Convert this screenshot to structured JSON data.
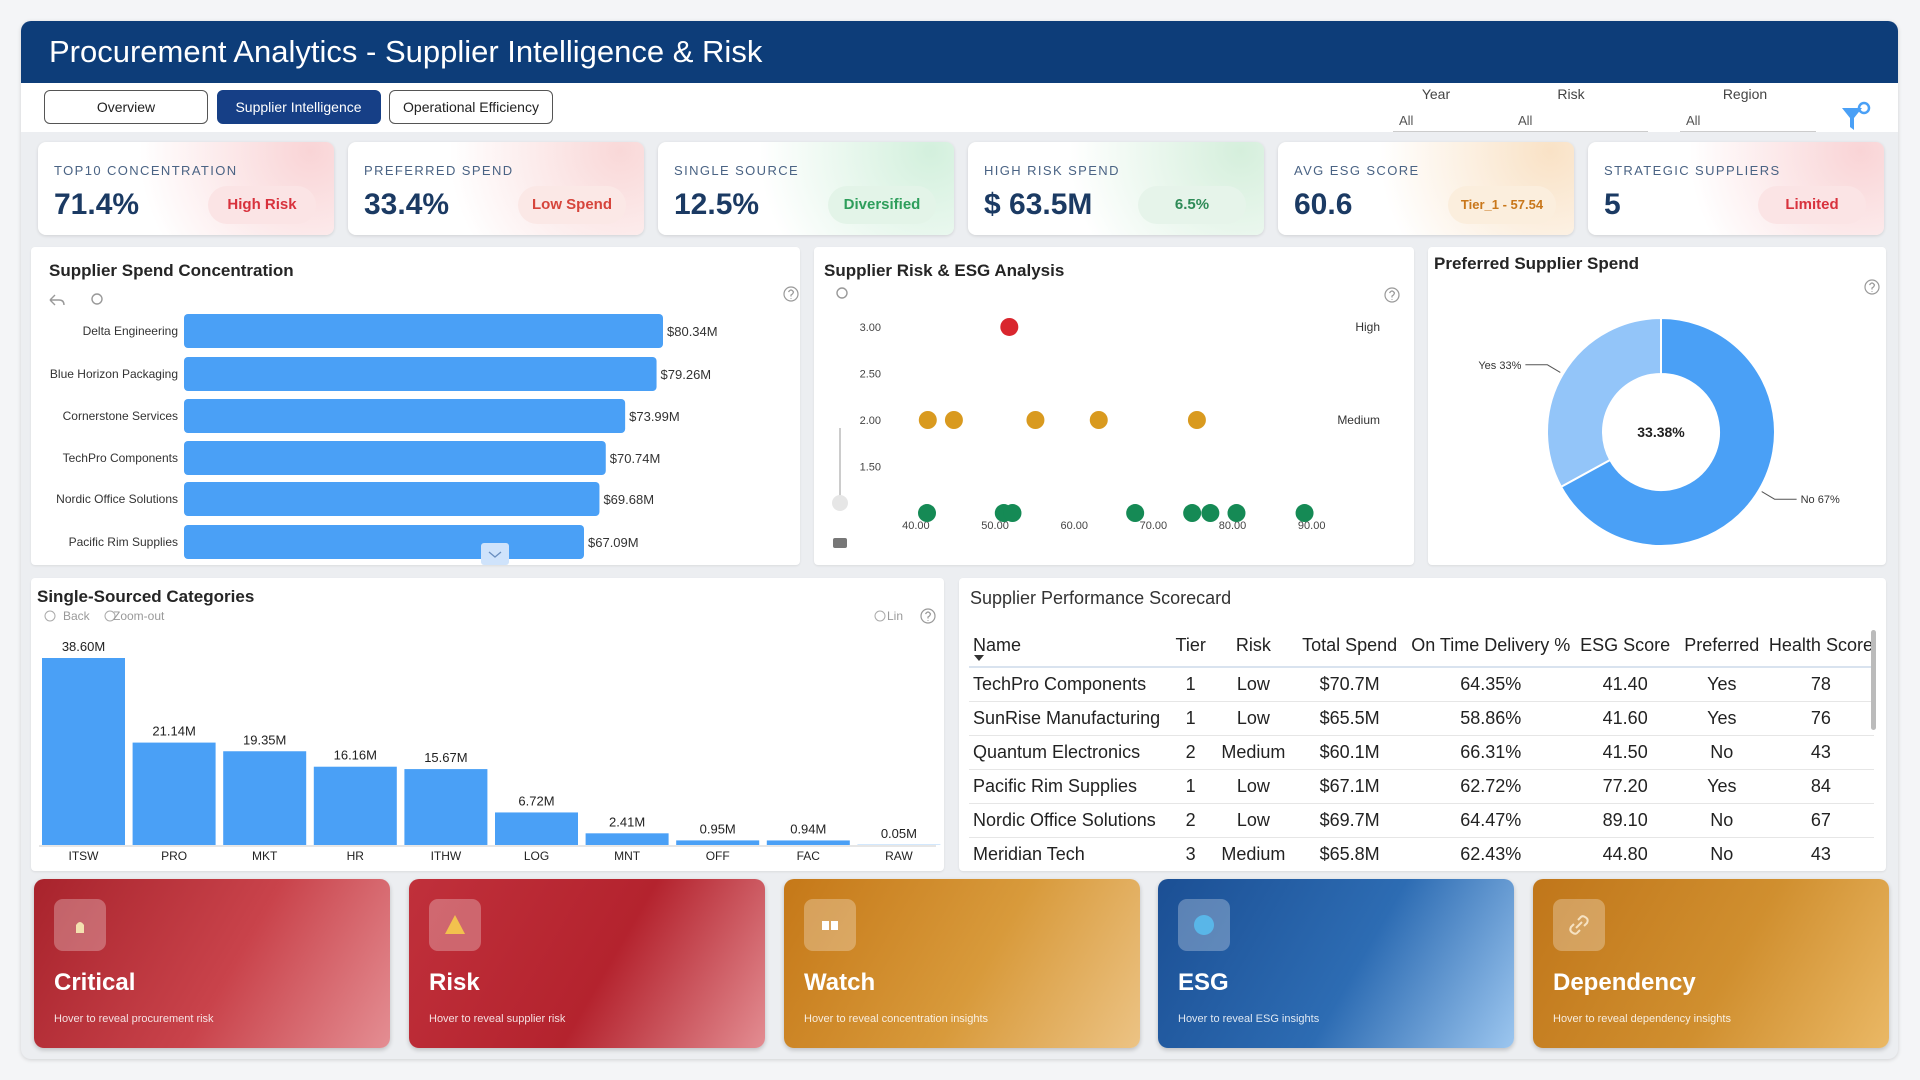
{
  "header": {
    "title": "Procurement Analytics - Supplier Intelligence & Risk"
  },
  "tabs": {
    "items": [
      "Overview",
      "Supplier Intelligence",
      "Operational Efficiency"
    ],
    "active": 1
  },
  "filters": [
    {
      "label": "Year",
      "value": "All"
    },
    {
      "label": "Risk",
      "value": "All"
    },
    {
      "label": "Region",
      "value": "All"
    }
  ],
  "kpis": [
    {
      "label": "TOP10 CONCENTRATION",
      "value": "71.4%",
      "badge": "High Risk"
    },
    {
      "label": "PREFERRED SPEND",
      "value": "33.4%",
      "badge": "Low Spend"
    },
    {
      "label": "SINGLE SOURCE",
      "value": "12.5%",
      "badge": "Diversified"
    },
    {
      "label": "HIGH RISK SPEND",
      "value": "$ 63.5M",
      "badge": "6.5%"
    },
    {
      "label": "AVG ESG SCORE",
      "value": "60.6",
      "badge": "Tier_1 - 57.54"
    },
    {
      "label": "STRATEGIC SUPPLIERS",
      "value": "5",
      "badge": "Limited"
    }
  ],
  "spend_concentration": {
    "type": "bar",
    "orientation": "horizontal",
    "title": "Supplier Spend Concentration",
    "categories": [
      "Delta Engineering",
      "Blue Horizon Packaging",
      "Cornerstone Services",
      "TechPro Components",
      "Nordic Office Solutions",
      "Pacific Rim Supplies"
    ],
    "values": [
      80.34,
      79.26,
      73.99,
      70.74,
      69.68,
      67.09
    ],
    "value_labels": [
      "$80.34M",
      "$79.26M",
      "$73.99M",
      "$70.74M",
      "$69.68M",
      "$67.09M"
    ],
    "color": "#4aa0f6"
  },
  "risk_esg": {
    "type": "scatter",
    "title": "Supplier Risk & ESG Analysis",
    "x": [
      51.8,
      41.5,
      44.8,
      55.1,
      63.1,
      75.5,
      41.4,
      51.1,
      52.2,
      67.7,
      74.9,
      77.2,
      80.5,
      89.1
    ],
    "y": [
      3,
      2,
      2,
      2,
      2,
      2,
      1,
      1,
      1,
      1,
      1,
      1,
      1,
      1
    ],
    "colors": [
      "#d9262e",
      "#d99a1f",
      "#d99a1f",
      "#d99a1f",
      "#d99a1f",
      "#d99a1f",
      "#158a55",
      "#158a55",
      "#158a55",
      "#158a55",
      "#158a55",
      "#158a55",
      "#158a55",
      "#158a55"
    ],
    "xlim": [
      32,
      98
    ],
    "ylim": [
      0.85,
      3.15
    ],
    "xticks": [
      {
        "value": 40,
        "label": "40.00"
      },
      {
        "value": 50,
        "label": "50.00"
      },
      {
        "value": 60,
        "label": "60.00"
      },
      {
        "value": 70,
        "label": "70.00"
      },
      {
        "value": 80,
        "label": "80.00"
      },
      {
        "value": 90,
        "label": "90.00"
      }
    ],
    "yticks": [
      {
        "value": 1.5,
        "label": "1.50"
      },
      {
        "value": 2,
        "label": "2.00"
      },
      {
        "value": 2.5,
        "label": "2.50"
      },
      {
        "value": 3,
        "label": "3.00"
      }
    ],
    "annotations": [
      {
        "y": 3,
        "text": "High"
      },
      {
        "y": 2,
        "text": "Medium"
      }
    ]
  },
  "preferred_spend": {
    "type": "donut",
    "title": "Preferred Supplier Spend",
    "categories": [
      "Yes",
      "No"
    ],
    "values": [
      33,
      67
    ],
    "value_labels": [
      "Yes 33%",
      "No 67%"
    ],
    "colors": [
      "#93c5f9",
      "#4aa0f6"
    ],
    "center_label": "33.38%"
  },
  "single_sourced": {
    "type": "bar",
    "title": "Single-Sourced Categories",
    "toolbar": [
      "Back",
      "Zoom-out",
      "Lin"
    ],
    "categories": [
      "ITSW",
      "PRO",
      "MKT",
      "HR",
      "ITHW",
      "LOG",
      "MNT",
      "OFF",
      "FAC",
      "RAW"
    ],
    "values": [
      38.6,
      21.14,
      19.35,
      16.16,
      15.67,
      6.72,
      2.41,
      0.95,
      0.94,
      0.05
    ],
    "value_labels": [
      "38.60M",
      "21.14M",
      "19.35M",
      "16.16M",
      "15.67M",
      "6.72M",
      "2.41M",
      "0.95M",
      "0.94M",
      "0.05M"
    ],
    "color": "#4aa0f6"
  },
  "scorecard": {
    "title": "Supplier Performance Scorecard",
    "columns": [
      "Name",
      "Tier",
      "Risk",
      "Total Spend",
      "On Time Delivery %",
      "ESG Score",
      "Preferred",
      "Health Score"
    ],
    "rows": [
      [
        "TechPro Components",
        "1",
        "Low",
        "$70.7M",
        "64.35%",
        "41.40",
        "Yes",
        "78"
      ],
      [
        "SunRise Manufacturing",
        "1",
        "Low",
        "$65.5M",
        "58.86%",
        "41.60",
        "Yes",
        "76"
      ],
      [
        "Quantum Electronics",
        "2",
        "Medium",
        "$60.1M",
        "66.31%",
        "41.50",
        "No",
        "43"
      ],
      [
        "Pacific Rim Supplies",
        "1",
        "Low",
        "$67.1M",
        "62.72%",
        "77.20",
        "Yes",
        "84"
      ],
      [
        "Nordic Office Solutions",
        "2",
        "Low",
        "$69.7M",
        "64.47%",
        "89.10",
        "No",
        "67"
      ],
      [
        "Meridian Tech",
        "3",
        "Medium",
        "$65.8M",
        "62.43%",
        "44.80",
        "No",
        "43"
      ]
    ]
  },
  "insight_cards": [
    {
      "title": "Critical",
      "subtitle": "Hover to reveal procurement risk"
    },
    {
      "title": "Risk",
      "subtitle": "Hover to reveal supplier risk"
    },
    {
      "title": "Watch",
      "subtitle": "Hover to reveal concentration insights"
    },
    {
      "title": "ESG",
      "subtitle": "Hover to reveal ESG insights"
    },
    {
      "title": "Dependency",
      "subtitle": "Hover to reveal dependency insights"
    }
  ]
}
